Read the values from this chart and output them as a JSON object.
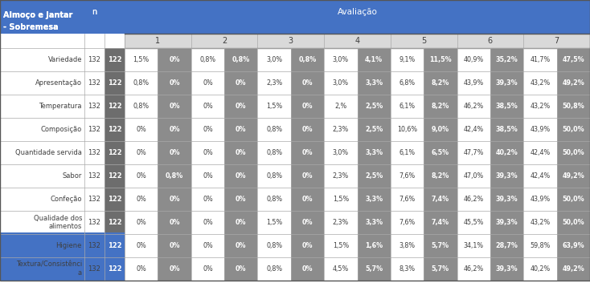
{
  "header_main_left": "Almoço e Jantar\n- Sobremesa",
  "header_n": "n",
  "header_avaliacao": "Avaliação",
  "sub_headers": [
    "1",
    "2",
    "3",
    "4",
    "5",
    "6",
    "7"
  ],
  "rows": [
    {
      "label": "Variedade",
      "n1": "132",
      "n2": "122",
      "vals": [
        "1,5%",
        "0%",
        "0,8%",
        "0,8%",
        "3,0%",
        "0,8%",
        "3,0%",
        "4,1%",
        "9,1%",
        "11,5%",
        "40,9%",
        "35,2%",
        "41,7%",
        "47,5%"
      ]
    },
    {
      "label": "Apresentação",
      "n1": "132",
      "n2": "122",
      "vals": [
        "0,8%",
        "0%",
        "0%",
        "0%",
        "2,3%",
        "0%",
        "3,0%",
        "3,3%",
        "6,8%",
        "8,2%",
        "43,9%",
        "39,3%",
        "43,2%",
        "49,2%"
      ]
    },
    {
      "label": "Temperatura",
      "n1": "132",
      "n2": "122",
      "vals": [
        "0,8%",
        "0%",
        "0%",
        "0%",
        "1,5%",
        "0%",
        "2,%",
        "2,5%",
        "6,1%",
        "8,2%",
        "46,2%",
        "38,5%",
        "43,2%",
        "50,8%"
      ]
    },
    {
      "label": "Composição",
      "n1": "132",
      "n2": "122",
      "vals": [
        "0%",
        "0%",
        "0%",
        "0%",
        "0,8%",
        "0%",
        "2,3%",
        "2,5%",
        "10,6%",
        "9,0%",
        "42,4%",
        "38,5%",
        "43,9%",
        "50,0%"
      ]
    },
    {
      "label": "Quantidade servida",
      "n1": "132",
      "n2": "122",
      "vals": [
        "0%",
        "0%",
        "0%",
        "0%",
        "0,8%",
        "0%",
        "3,0%",
        "3,3%",
        "6,1%",
        "6,5%",
        "47,7%",
        "40,2%",
        "42,4%",
        "50,0%"
      ]
    },
    {
      "label": "Sabor",
      "n1": "132",
      "n2": "122",
      "vals": [
        "0%",
        "0,8%",
        "0%",
        "0%",
        "0,8%",
        "0%",
        "2,3%",
        "2,5%",
        "7,6%",
        "8,2%",
        "47,0%",
        "39,3%",
        "42,4%",
        "49,2%"
      ]
    },
    {
      "label": "Confeção",
      "n1": "132",
      "n2": "122",
      "vals": [
        "0%",
        "0%",
        "0%",
        "0%",
        "0,8%",
        "0%",
        "1,5%",
        "3,3%",
        "7,6%",
        "7,4%",
        "46,2%",
        "39,3%",
        "43,9%",
        "50,0%"
      ]
    },
    {
      "label": "Qualidade dos\nalimentos",
      "n1": "132",
      "n2": "122",
      "vals": [
        "0%",
        "0%",
        "0%",
        "0%",
        "1,5%",
        "0%",
        "2,3%",
        "3,3%",
        "7,6%",
        "7,4%",
        "45,5%",
        "39,3%",
        "43,2%",
        "50,0%"
      ]
    },
    {
      "label": "Higiene",
      "n1": "132",
      "n2": "122",
      "vals": [
        "0%",
        "0%",
        "0%",
        "0%",
        "0,8%",
        "0%",
        "1,5%",
        "1,6%",
        "3,8%",
        "5,7%",
        "34,1%",
        "28,7%",
        "59,8%",
        "63,9%"
      ]
    },
    {
      "label": "Textura/Consistênci\na",
      "n1": "132",
      "n2": "122",
      "vals": [
        "0%",
        "0%",
        "0%",
        "0%",
        "0,8%",
        "0%",
        "4,5%",
        "5,7%",
        "8,3%",
        "5,7%",
        "46,2%",
        "39,3%",
        "40,2%",
        "49,2%"
      ]
    }
  ],
  "color_blue": "#4472C4",
  "color_light_gray": "#D9D9D9",
  "color_dark_gray": "#8C8C8C",
  "color_white": "#FFFFFF",
  "color_dark_text": "#3F3F3F",
  "color_n2_bg": "#6D6D6D",
  "color_border": "#AAAAAA"
}
